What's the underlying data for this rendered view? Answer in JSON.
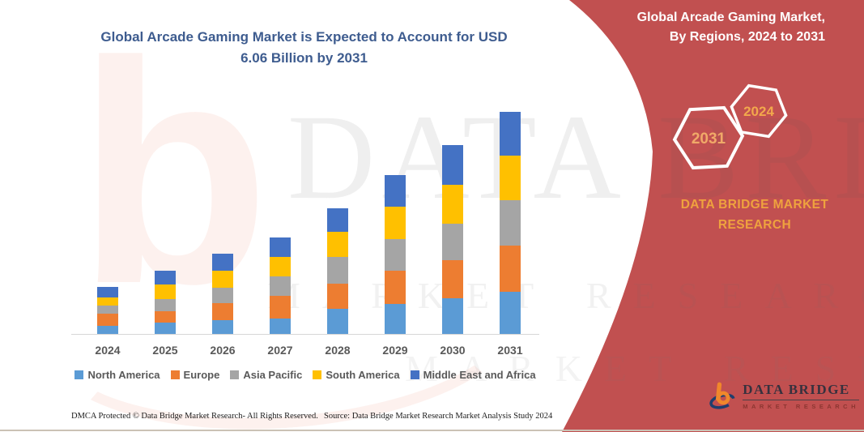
{
  "header": {
    "title_line1": "Global Arcade Gaming Market is Expected to Account for USD",
    "title_line2": "6.06 Billion by 2031",
    "panel_title_line1": "Global Arcade Gaming Market,",
    "panel_title_line2": "By Regions, 2024 to 2031"
  },
  "badges": {
    "end_year": "2031",
    "start_year": "2024"
  },
  "brand": {
    "panel_name_line1": "DATA BRIDGE MARKET",
    "panel_name_line2": "RESEARCH",
    "logo_name": "DATA BRIDGE",
    "logo_tagline": "MARKET RESEARCH"
  },
  "watermark": {
    "big_text": "DATA BRIDGE",
    "row2": "MARKET RESEARCH",
    "row3": "MARKET RESEARCH"
  },
  "colors": {
    "panel_red": "#C15050",
    "gold": "#EFA23E",
    "title_blue": "#3E5C8F",
    "axis_gray": "#D6D6D6",
    "label_gray": "#595959"
  },
  "chart_data": {
    "type": "bar",
    "stacked": true,
    "title": "Global Arcade Gaming Market is Expected to Account for USD 6.06 Billion by 2031",
    "unit": "USD Billion",
    "categories": [
      "2024",
      "2025",
      "2026",
      "2027",
      "2028",
      "2029",
      "2030",
      "2031"
    ],
    "series": [
      {
        "name": "North America",
        "color": "#5B9BD5",
        "values": [
          0.22,
          0.32,
          0.37,
          0.42,
          0.68,
          0.81,
          0.97,
          1.16
        ]
      },
      {
        "name": "Europe",
        "color": "#ED7D31",
        "values": [
          0.33,
          0.31,
          0.46,
          0.61,
          0.69,
          0.91,
          1.03,
          1.25
        ]
      },
      {
        "name": "Asia Pacific",
        "color": "#A5A5A5",
        "values": [
          0.22,
          0.33,
          0.42,
          0.52,
          0.74,
          0.86,
          1.0,
          1.23
        ]
      },
      {
        "name": "South America",
        "color": "#FFC000",
        "values": [
          0.22,
          0.4,
          0.46,
          0.52,
          0.68,
          0.88,
          1.06,
          1.22
        ]
      },
      {
        "name": "Middle East and Africa",
        "color": "#4472C4",
        "values": [
          0.29,
          0.38,
          0.46,
          0.53,
          0.65,
          0.87,
          1.09,
          1.2
        ]
      }
    ],
    "totals": [
      1.28,
      1.74,
      2.17,
      2.6,
      3.44,
      4.33,
      5.15,
      6.06
    ],
    "ylim": [
      0,
      6.5
    ],
    "y_axis_visible": false,
    "gridlines": false,
    "legend_position": "bottom"
  },
  "footer": {
    "dmca": "DMCA Protected © Data Bridge Market Research-  All Rights Reserved.",
    "source": "Source: Data Bridge Market Research  Market Analysis Study 2024"
  }
}
